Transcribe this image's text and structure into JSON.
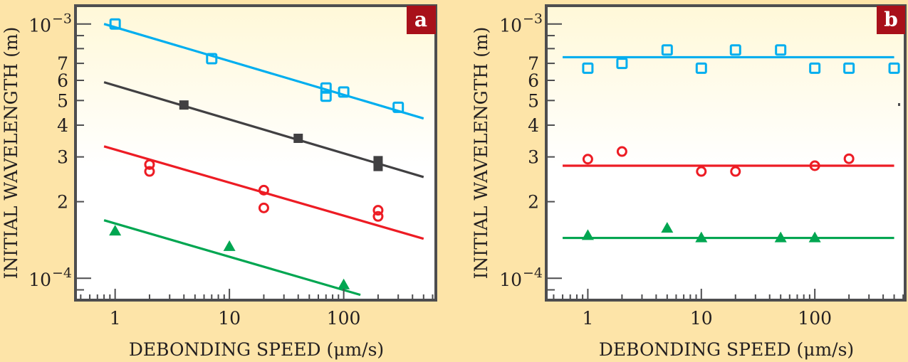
{
  "colors": {
    "background": "#fde4a8",
    "plot_top": "#fff8d8",
    "plot_bottom": "#ffffff",
    "frame": "#4d4d4f",
    "badge": "#a8101a",
    "cyan": "#00aeef",
    "black": "#414042",
    "red": "#ed1c24",
    "green": "#00a651"
  },
  "chart_data": [
    {
      "type": "scatter",
      "panel_label": "a",
      "xlabel": "DEBONDING SPEED (μm/s)",
      "ylabel": "INITIAL WAVELENGTH (m)",
      "xscale": "log",
      "yscale": "log",
      "xlim": [
        0.45,
        640
      ],
      "ylim": [
        8.2e-05,
        0.00118
      ],
      "grid": false,
      "x_ticks": [
        {
          "value": 1,
          "label": "1"
        },
        {
          "value": 10,
          "label": "10"
        },
        {
          "value": 100,
          "label": "100"
        }
      ],
      "y_ticks": [
        {
          "value": 0.001,
          "base": "10",
          "exp": "−3"
        },
        {
          "value": 0.0007,
          "label": "7"
        },
        {
          "value": 0.0006,
          "label": "6"
        },
        {
          "value": 0.0005,
          "label": "5"
        },
        {
          "value": 0.0004,
          "label": "4"
        },
        {
          "value": 0.0003,
          "label": "3"
        },
        {
          "value": 0.0002,
          "label": "2"
        },
        {
          "value": 0.0001,
          "base": "10",
          "exp": "−4"
        }
      ],
      "series": [
        {
          "name": "cyan-squares",
          "marker": "open-square",
          "color": "cyan",
          "points": [
            [
              1,
              0.001
            ],
            [
              7,
              0.00073
            ],
            [
              70,
              0.00056
            ],
            [
              70,
              0.00052
            ],
            [
              100,
              0.00054
            ],
            [
              300,
              0.00047
            ]
          ],
          "fit": [
            [
              0.8,
              0.001
            ],
            [
              500,
              0.000425
            ]
          ]
        },
        {
          "name": "black-squares",
          "marker": "filled-square",
          "color": "black",
          "points": [
            [
              4,
              0.00048
            ],
            [
              40,
              0.000355
            ],
            [
              200,
              0.00029
            ],
            [
              200,
              0.000275
            ]
          ],
          "fit": [
            [
              0.8,
              0.00059
            ],
            [
              500,
              0.00025
            ]
          ]
        },
        {
          "name": "red-circles",
          "marker": "open-circle",
          "color": "red",
          "points": [
            [
              2,
              0.00028
            ],
            [
              2,
              0.000263
            ],
            [
              20,
              0.000222
            ],
            [
              20,
              0.000189
            ],
            [
              200,
              0.000185
            ],
            [
              200,
              0.000175
            ]
          ],
          "fit": [
            [
              0.8,
              0.00033
            ],
            [
              500,
              0.000143
            ]
          ]
        },
        {
          "name": "green-triangles",
          "marker": "filled-triangle",
          "color": "green",
          "points": [
            [
              1,
              0.000153
            ],
            [
              10,
              0.000133
            ],
            [
              100,
              9.4e-05
            ]
          ],
          "fit": [
            [
              0.8,
              0.000169
            ],
            [
              140,
              8.6e-05
            ]
          ]
        }
      ]
    },
    {
      "type": "scatter",
      "panel_label": "b",
      "xlabel": "DEBONDING SPEED (μm/s)",
      "ylabel": "INITIAL WAVELENGTH (m)",
      "xscale": "log",
      "yscale": "log",
      "xlim": [
        0.43,
        625
      ],
      "ylim": [
        8.2e-05,
        0.00118
      ],
      "grid": false,
      "x_ticks": [
        {
          "value": 1,
          "label": "1"
        },
        {
          "value": 10,
          "label": "10"
        },
        {
          "value": 100,
          "label": "100"
        }
      ],
      "y_ticks": [
        {
          "value": 0.001,
          "base": "10",
          "exp": "−3"
        },
        {
          "value": 0.0007,
          "label": "7"
        },
        {
          "value": 0.0006,
          "label": "6"
        },
        {
          "value": 0.0005,
          "label": "5"
        },
        {
          "value": 0.0004,
          "label": "4"
        },
        {
          "value": 0.0003,
          "label": "3"
        },
        {
          "value": 0.0002,
          "label": "2"
        },
        {
          "value": 0.0001,
          "base": "10",
          "exp": "−4"
        }
      ],
      "series": [
        {
          "name": "cyan-squares",
          "marker": "open-square",
          "color": "cyan",
          "points": [
            [
              1,
              0.00067
            ],
            [
              2,
              0.0007
            ],
            [
              5,
              0.00079
            ],
            [
              10,
              0.00067
            ],
            [
              20,
              0.00079
            ],
            [
              50,
              0.00079
            ],
            [
              100,
              0.00067
            ],
            [
              200,
              0.00067
            ],
            [
              500,
              0.00067
            ]
          ],
          "fit": [
            [
              0.6,
              0.00074
            ],
            [
              500,
              0.00074
            ]
          ]
        },
        {
          "name": "red-circles",
          "marker": "open-circle",
          "color": "red",
          "points": [
            [
              1,
              0.000294
            ],
            [
              2,
              0.000315
            ],
            [
              10,
              0.000263
            ],
            [
              20,
              0.000263
            ],
            [
              100,
              0.000277
            ],
            [
              200,
              0.000295
            ]
          ],
          "fit": [
            [
              0.6,
              0.000277
            ],
            [
              500,
              0.000277
            ]
          ]
        },
        {
          "name": "green-triangles",
          "marker": "filled-triangle",
          "color": "green",
          "points": [
            [
              1,
              0.000147
            ],
            [
              5,
              0.000157
            ],
            [
              10,
              0.000144
            ],
            [
              50,
              0.000144
            ],
            [
              100,
              0.000144
            ]
          ],
          "fit": [
            [
              0.6,
              0.000144
            ],
            [
              500,
              0.000144
            ]
          ]
        }
      ]
    }
  ]
}
